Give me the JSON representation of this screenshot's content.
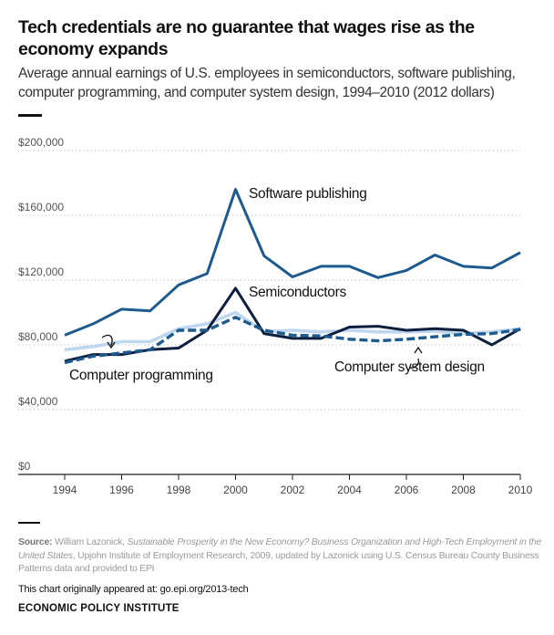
{
  "title": "Tech credentials are no guarantee that wages rise as the economy expands",
  "subtitle": "Average annual earnings of U.S. employees in semiconductors, software publishing, computer programming, and computer system design, 1994–2010 (2012 dollars)",
  "source": {
    "label": "Source:",
    "text_before": " William Lazonick, ",
    "italic": "Sustainable Prosperity in the New Economy? Business Organization and High-Tech Employment in the United States",
    "text_after": ", Upjohn Institute of Employment Research, 2009, updated by Lazonick using U.S. Census Bureau County Business Patterns data and provided to EPI"
  },
  "appeared": "This chart originally appeared at: go.epi.org/2013-tech",
  "organization": "ECONOMIC POLICY INSTITUTE",
  "chart_data": {
    "type": "line",
    "x": [
      1994,
      1995,
      1996,
      1997,
      1998,
      1999,
      2000,
      2001,
      2002,
      2003,
      2004,
      2005,
      2006,
      2007,
      2008,
      2009,
      2010
    ],
    "xticks": [
      1994,
      1996,
      1998,
      2000,
      2002,
      2004,
      2006,
      2008,
      2010
    ],
    "xtick_labels": [
      "1994",
      "1996",
      "1998",
      "2000",
      "2002",
      "2004",
      "2006",
      "2008",
      "2010"
    ],
    "yticks": [
      0,
      40000,
      80000,
      120000,
      160000,
      200000
    ],
    "ytick_labels": [
      "$0",
      "$40,000",
      "$80,000",
      "$120,000",
      "$160,000",
      "$200,000"
    ],
    "xlim": [
      1994,
      2010
    ],
    "ylim": [
      0,
      200000
    ],
    "grid": "horizontal dotted",
    "series": [
      {
        "name": "Software publishing",
        "color": "#1d5a8e",
        "style": "solid",
        "values": [
          86000,
          93000,
          102000,
          101000,
          117000,
          124000,
          176000,
          135000,
          122000,
          128500,
          128500,
          121500,
          126000,
          135500,
          128500,
          127500,
          137000
        ]
      },
      {
        "name": "Semiconductors",
        "color": "#0c1f3f",
        "style": "solid",
        "values": [
          70000,
          74000,
          74000,
          77000,
          78000,
          89000,
          115000,
          87000,
          84000,
          84000,
          91000,
          91500,
          89000,
          90000,
          89000,
          80000,
          90000
        ]
      },
      {
        "name": "Computer programming",
        "color": "#bfd7ee",
        "style": "solid",
        "values": [
          77000,
          79000,
          82000,
          82000,
          90000,
          93000,
          100000,
          88000,
          89000,
          88000,
          89000,
          88000,
          88000,
          88500,
          87000,
          88000,
          90000
        ]
      },
      {
        "name": "Computer system design",
        "color": "#1d5a8e",
        "style": "dashed",
        "values": [
          69000,
          73000,
          75000,
          77000,
          89000,
          89000,
          97000,
          89000,
          86000,
          85500,
          83500,
          82500,
          83500,
          85000,
          86500,
          87000,
          89500
        ]
      }
    ],
    "annotations": [
      {
        "text": "Software publishing"
      },
      {
        "text": "Semiconductors"
      },
      {
        "text": "Computer programming"
      },
      {
        "text": "Computer system design"
      }
    ]
  }
}
